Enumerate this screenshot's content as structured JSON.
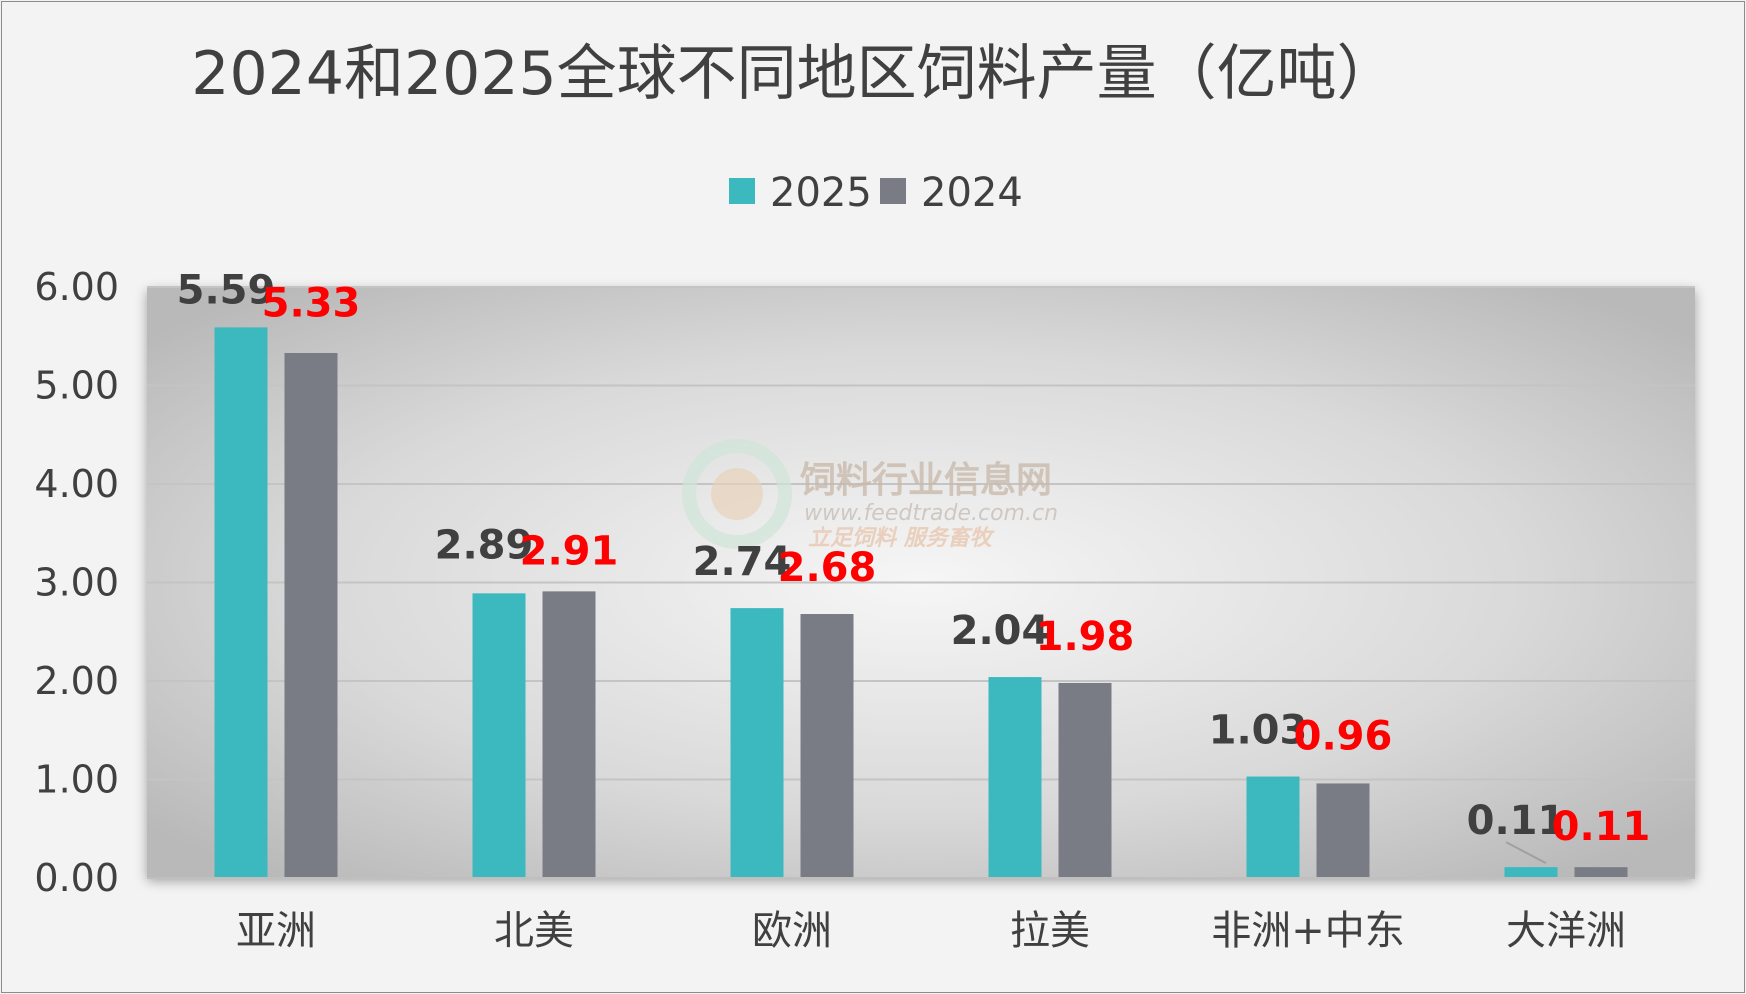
{
  "chart_data": {
    "type": "bar",
    "title": "2024和2025全球不同地区饲料产量（亿吨）",
    "categories": [
      "亚洲",
      "北美",
      "欧洲",
      "拉美",
      "非洲+中东",
      "大洋洲"
    ],
    "series": [
      {
        "name": "2025",
        "values": [
          5.59,
          2.89,
          2.74,
          2.04,
          1.03,
          0.11
        ],
        "color": "#3cb8bf"
      },
      {
        "name": "2024",
        "values": [
          5.33,
          2.91,
          2.68,
          1.98,
          0.96,
          0.11
        ],
        "color": "#7a7c85"
      }
    ],
    "data_labels": {
      "2025": [
        "5.59",
        "2.89",
        "2.74",
        "2.04",
        "1.03",
        "0.11"
      ],
      "2024": [
        "5.33",
        "2.91",
        "2.68",
        "1.98",
        "0.96",
        "0.11"
      ]
    },
    "yticks": [
      "0.00",
      "1.00",
      "2.00",
      "3.00",
      "4.00",
      "5.00",
      "6.00"
    ],
    "ylim": [
      0,
      6
    ],
    "grid": true,
    "legend_position": "top",
    "label_colors": {
      "2025": "#404040",
      "2024": "#ff0000"
    }
  },
  "watermark": {
    "title": "饲料行业信息网",
    "url": "www.feedtrade.com.cn",
    "slogan": "立足饲料   服务畜牧"
  }
}
